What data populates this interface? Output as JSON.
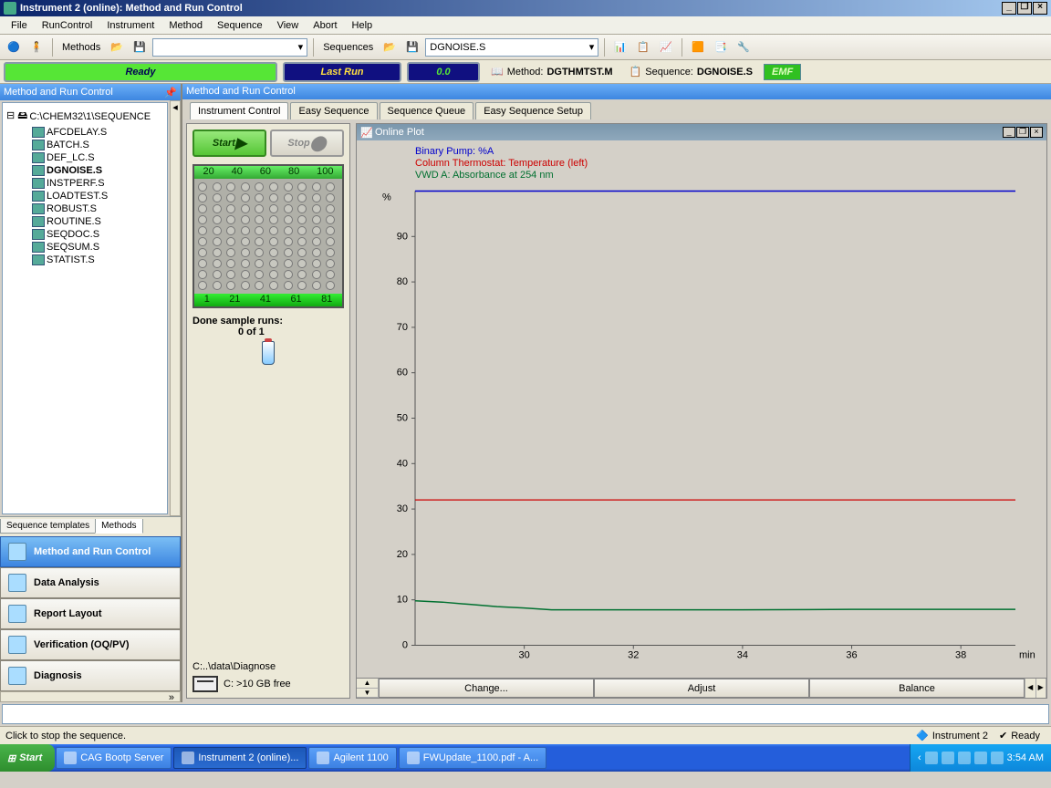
{
  "window": {
    "title": "Instrument 2 (online): Method and Run Control"
  },
  "menubar": [
    "File",
    "RunControl",
    "Instrument",
    "Method",
    "Sequence",
    "View",
    "Abort",
    "Help"
  ],
  "toolbar": {
    "methods_label": "Methods",
    "sequences_label": "Sequences",
    "sequence_selected": "DGNOISE.S"
  },
  "status": {
    "ready": "Ready",
    "lastrun_label": "Last Run",
    "lastrun_value": "0.0",
    "method_label": "Method:",
    "method_value": "DGTHMTST.M",
    "sequence_label": "Sequence:",
    "sequence_value": "DGNOISE.S",
    "emf": "EMF"
  },
  "leftpanel": {
    "title": "Method and Run Control",
    "root": "C:\\CHEM32\\1\\SEQUENCE",
    "items": [
      "AFCDELAY.S",
      "BATCH.S",
      "DEF_LC.S",
      "DGNOISE.S",
      "INSTPERF.S",
      "LOADTEST.S",
      "ROBUST.S",
      "ROUTINE.S",
      "SEQDOC.S",
      "SEQSUM.S",
      "STATIST.S"
    ],
    "selected": "DGNOISE.S",
    "bottom_tabs": [
      "Sequence templates",
      "Methods"
    ],
    "bottom_tab_active": "Methods"
  },
  "nav": [
    {
      "label": "Method and Run Control",
      "active": true
    },
    {
      "label": "Data Analysis",
      "active": false
    },
    {
      "label": "Report Layout",
      "active": false
    },
    {
      "label": "Verification (OQ/PV)",
      "active": false
    },
    {
      "label": "Diagnosis",
      "active": false
    }
  ],
  "rightpanel": {
    "title": "Method and Run Control",
    "tabs": [
      "Instrument Control",
      "Easy Sequence",
      "Sequence Queue",
      "Easy Sequence Setup"
    ],
    "tab_active": "Instrument Control"
  },
  "control": {
    "start": "Start",
    "stop": "Stop",
    "wellplate_top": [
      "20",
      "40",
      "60",
      "80",
      "100"
    ],
    "wellplate_bottom": [
      "1",
      "21",
      "41",
      "61",
      "81"
    ],
    "done_label": "Done sample runs:",
    "done_value": "0 of 1",
    "datapath": "C:..\\data\\Diagnose",
    "diskfree": "C: >10 GB free"
  },
  "plot": {
    "title": "Online Plot",
    "legend": [
      {
        "text": "Binary Pump: %A",
        "color": "#0000cc"
      },
      {
        "text": "Column Thermostat: Temperature (left)",
        "color": "#cc0000"
      },
      {
        "text": "VWD A: Absorbance at 254 nm",
        "color": "#007030"
      }
    ],
    "yaxis_label": "%",
    "yticks": [
      0,
      10,
      20,
      30,
      40,
      50,
      60,
      70,
      80,
      90
    ],
    "ylim": [
      0,
      100
    ],
    "xticks": [
      30,
      32,
      34,
      36,
      38
    ],
    "xlim": [
      28,
      39
    ],
    "xaxis_label": "min",
    "series": {
      "blue_y": 100,
      "red_y": 32,
      "green": [
        [
          28,
          9.8
        ],
        [
          28.5,
          9.5
        ],
        [
          29,
          9.0
        ],
        [
          29.5,
          8.5
        ],
        [
          30,
          8.2
        ],
        [
          30.5,
          7.8
        ],
        [
          31,
          7.8
        ],
        [
          32,
          7.8
        ],
        [
          34,
          7.8
        ],
        [
          36,
          7.9
        ],
        [
          38,
          7.9
        ],
        [
          39,
          7.9
        ]
      ]
    },
    "buttons": [
      "Change...",
      "Adjust",
      "Balance"
    ],
    "background_color": "#d4d0c8",
    "gridline_color": "#b0ada0"
  },
  "statusbar": {
    "hint": "Click to stop the sequence.",
    "instrument": "Instrument 2",
    "ready": "Ready"
  },
  "taskbar": {
    "start": "Start",
    "buttons": [
      {
        "label": "CAG Bootp Server",
        "active": false
      },
      {
        "label": "Instrument 2 (online)...",
        "active": true
      },
      {
        "label": "Agilent 1100",
        "active": false
      },
      {
        "label": "FWUpdate_1100.pdf - A...",
        "active": false
      }
    ],
    "clock": "3:54 AM"
  }
}
